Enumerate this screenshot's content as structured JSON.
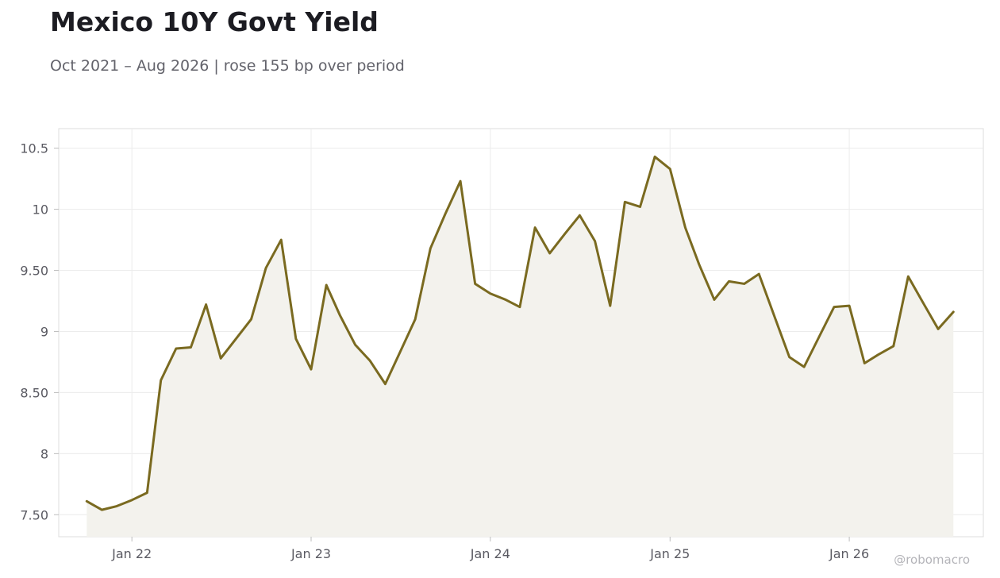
{
  "title": "Mexico 10Y Govt Yield",
  "subtitle": "Oct 2021 – Aug 2026 | rose 155 bp over period",
  "watermark": "@robomacro",
  "colors": {
    "line": "#7a6a20",
    "fill": "#f3f2ed",
    "grid": "#ececec",
    "frame": "#dcdcdc",
    "tick_text": "#5a5a62"
  },
  "chart_data": {
    "type": "area",
    "title": "Mexico 10Y Govt Yield",
    "subtitle": "Oct 2021 – Aug 2026 | rose 155 bp over period",
    "xlabel": "",
    "ylabel": "",
    "grid": true,
    "legend": "none",
    "xlim": [
      "2021-08-05",
      "2026-10-01"
    ],
    "ylim": [
      7.32,
      10.66
    ],
    "x_ticks": [
      {
        "date": "2022-01-01",
        "label": "Jan 22"
      },
      {
        "date": "2023-01-01",
        "label": "Jan 23"
      },
      {
        "date": "2024-01-01",
        "label": "Jan 24"
      },
      {
        "date": "2025-01-01",
        "label": "Jan 25"
      },
      {
        "date": "2026-01-01",
        "label": "Jan 26"
      }
    ],
    "y_ticks": [
      {
        "value": 7.5,
        "label": "7.50"
      },
      {
        "value": 8.0,
        "label": "8"
      },
      {
        "value": 8.5,
        "label": "8.50"
      },
      {
        "value": 9.0,
        "label": "9"
      },
      {
        "value": 9.5,
        "label": "9.50"
      },
      {
        "value": 10.0,
        "label": "10"
      },
      {
        "value": 10.5,
        "label": "10.5"
      }
    ],
    "series": [
      {
        "x": [
          "2021-10-01",
          "2021-11-01",
          "2021-12-01",
          "2022-01-01",
          "2022-02-01",
          "2022-03-01",
          "2022-04-01",
          "2022-05-01",
          "2022-06-01",
          "2022-07-01",
          "2022-08-01",
          "2022-09-01",
          "2022-10-01",
          "2022-11-01",
          "2022-12-01",
          "2023-01-01",
          "2023-02-01",
          "2023-03-01",
          "2023-04-01",
          "2023-05-01",
          "2023-06-01",
          "2023-07-01",
          "2023-08-01",
          "2023-09-01",
          "2023-10-01",
          "2023-11-01",
          "2023-12-01",
          "2024-01-01",
          "2024-02-01",
          "2024-03-01",
          "2024-04-01",
          "2024-05-01",
          "2024-06-01",
          "2024-07-01",
          "2024-08-01",
          "2024-09-01",
          "2024-10-01",
          "2024-11-01",
          "2024-12-01",
          "2025-01-01",
          "2025-02-01",
          "2025-03-01",
          "2025-04-01",
          "2025-05-01",
          "2025-06-01",
          "2025-07-01",
          "2025-08-01",
          "2025-09-01",
          "2025-10-01",
          "2025-11-01",
          "2025-12-01",
          "2026-01-01",
          "2026-02-01",
          "2026-03-01",
          "2026-04-01",
          "2026-05-01",
          "2026-06-01",
          "2026-07-01",
          "2026-08-01"
        ],
        "values": [
          7.61,
          7.54,
          7.57,
          7.62,
          7.68,
          8.6,
          8.86,
          8.87,
          9.22,
          8.78,
          8.94,
          9.1,
          9.52,
          9.75,
          8.94,
          8.69,
          9.38,
          9.13,
          8.89,
          8.76,
          8.57,
          8.83,
          9.1,
          9.68,
          9.96,
          10.23,
          9.39,
          9.31,
          9.26,
          9.2,
          9.85,
          9.64,
          9.8,
          9.95,
          9.74,
          9.21,
          10.06,
          10.02,
          10.43,
          10.33,
          9.85,
          9.55,
          9.26,
          9.41,
          9.39,
          9.47,
          9.13,
          8.79,
          8.71,
          8.96,
          9.2,
          9.21,
          8.74,
          8.81,
          8.88,
          9.45,
          9.23,
          9.02,
          9.16
        ]
      }
    ]
  }
}
